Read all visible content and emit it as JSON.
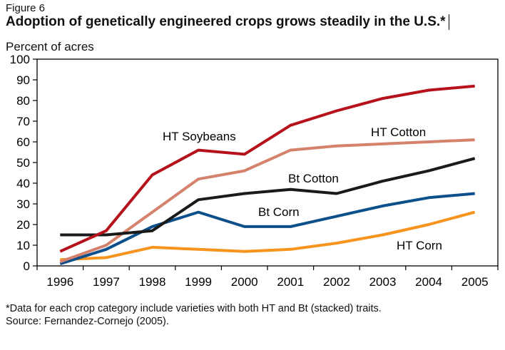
{
  "figure_label": "Figure 6",
  "chart_data": {
    "type": "line",
    "title": "Adoption of genetically engineered crops grows steadily in the U.S.*",
    "ylabel": "Percent of acres",
    "xlabel": "",
    "ylim": [
      0,
      100
    ],
    "yticks": [
      0,
      10,
      20,
      30,
      40,
      50,
      60,
      70,
      80,
      90,
      100
    ],
    "categories": [
      "1996",
      "1997",
      "1998",
      "1999",
      "2000",
      "2001",
      "2002",
      "2003",
      "2004",
      "2005"
    ],
    "grid": false,
    "series": [
      {
        "name": "HT Soybeans",
        "color": "#b5121b",
        "values": [
          7,
          17,
          44,
          56,
          54,
          68,
          75,
          81,
          85,
          87
        ]
      },
      {
        "name": "HT Cotton",
        "color": "#d4826c",
        "values": [
          2,
          10,
          26,
          42,
          46,
          56,
          58,
          59,
          60,
          61
        ]
      },
      {
        "name": "Bt Cotton",
        "color": "#1a1a1a",
        "values": [
          15,
          15,
          17,
          32,
          35,
          37,
          35,
          41,
          46,
          52
        ]
      },
      {
        "name": "Bt Corn",
        "color": "#0d4f8b",
        "values": [
          1,
          8,
          19,
          26,
          19,
          19,
          24,
          29,
          33,
          35
        ]
      },
      {
        "name": "HT Corn",
        "color": "#f7941d",
        "values": [
          3,
          4,
          9,
          8,
          7,
          8,
          11,
          15,
          20,
          26
        ]
      }
    ]
  },
  "footnote": "*Data for each crop category include varieties with both HT and Bt (stacked) traits.",
  "source": "Source: Fernandez-Cornejo  (2005)."
}
